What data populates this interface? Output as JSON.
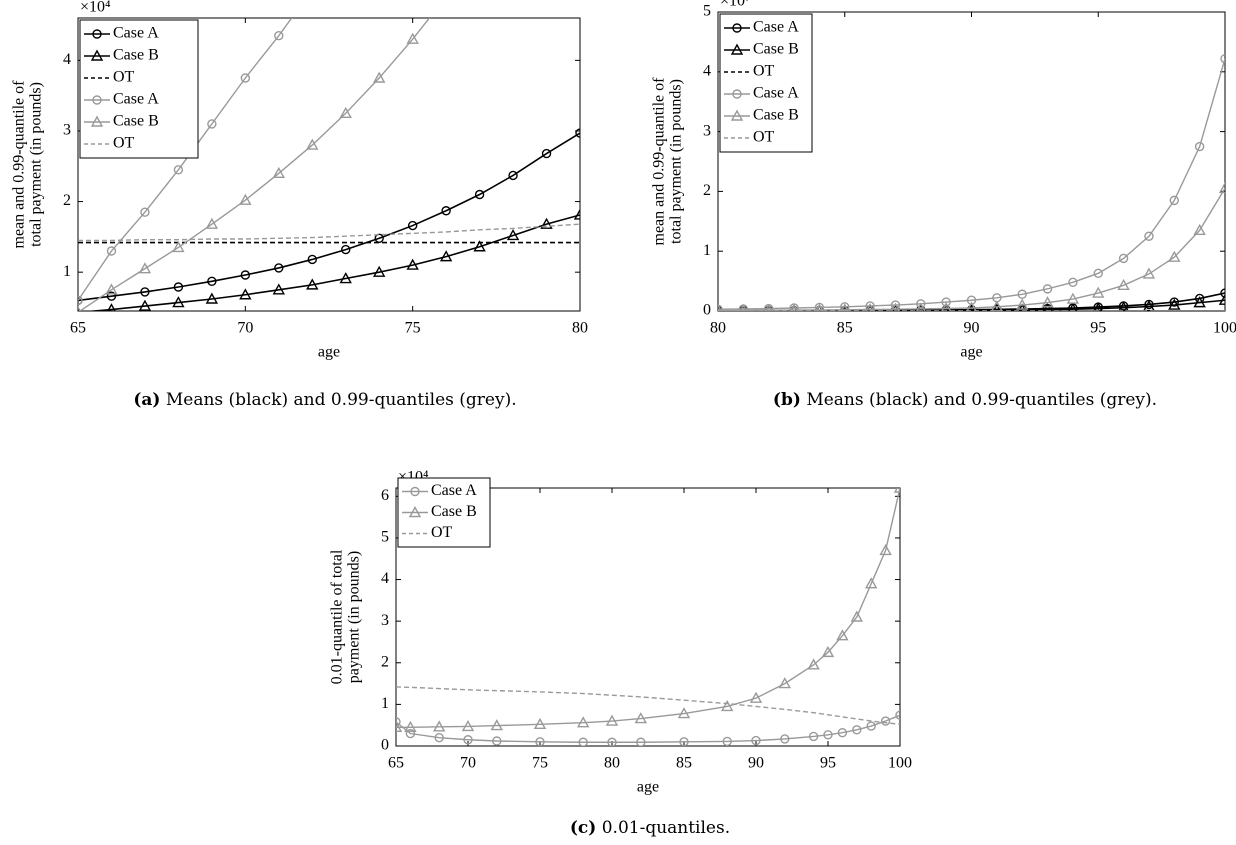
{
  "chart_data": [
    {
      "type": "line",
      "xlabel": "age",
      "ylabel": [
        "mean and 0.99-quantile of",
        "total payment (in pounds)"
      ],
      "y_multiplier": "×10⁴",
      "caption_label": "(a)",
      "caption": "Means (black) and 0.99-quantiles (grey).",
      "xlim": [
        65,
        80
      ],
      "xticks": [
        65,
        70,
        75,
        80
      ],
      "ylim": [
        0.45,
        4.6
      ],
      "yticks": [
        1,
        2,
        3,
        4
      ],
      "grid": false,
      "legend": "upper left",
      "x": [
        65,
        66,
        67,
        68,
        69,
        70,
        71,
        72,
        73,
        74,
        75,
        76,
        77,
        78,
        79,
        80
      ],
      "series": [
        {
          "name": "Case A",
          "color": "#000000",
          "marker": "circle",
          "dash": "solid",
          "values": [
            0.6,
            0.66,
            0.72,
            0.79,
            0.87,
            0.96,
            1.06,
            1.18,
            1.32,
            1.48,
            1.66,
            1.87,
            2.1,
            2.37,
            2.68,
            2.97
          ]
        },
        {
          "name": "Case B",
          "color": "#000000",
          "marker": "triangle",
          "dash": "solid",
          "values": [
            0.43,
            0.47,
            0.52,
            0.57,
            0.62,
            0.68,
            0.75,
            0.82,
            0.91,
            1.0,
            1.1,
            1.22,
            1.36,
            1.52,
            1.68,
            1.81
          ]
        },
        {
          "name": "OT",
          "color": "#000000",
          "marker": "none",
          "dash": "dashed",
          "values": [
            1.42,
            1.42,
            1.42,
            1.42,
            1.42,
            1.42,
            1.42,
            1.42,
            1.42,
            1.42,
            1.42,
            1.42,
            1.42,
            1.42,
            1.42,
            1.42
          ]
        },
        {
          "name": "Case A",
          "color": "#999999",
          "marker": "circle",
          "dash": "solid",
          "values": [
            0.6,
            1.3,
            1.85,
            2.45,
            3.1,
            3.75,
            4.35,
            5.0,
            null,
            null,
            null,
            null,
            null,
            null,
            null,
            null
          ]
        },
        {
          "name": "Case B",
          "color": "#999999",
          "marker": "triangle",
          "dash": "solid",
          "values": [
            0.43,
            0.75,
            1.05,
            1.35,
            1.68,
            2.02,
            2.4,
            2.8,
            3.25,
            3.75,
            4.3,
            4.9,
            null,
            null,
            null,
            null
          ]
        },
        {
          "name": "OT",
          "color": "#999999",
          "marker": "none",
          "dash": "dashed",
          "values": [
            1.45,
            1.45,
            1.46,
            1.46,
            1.47,
            1.47,
            1.48,
            1.49,
            1.51,
            1.53,
            1.55,
            1.57,
            1.6,
            1.62,
            1.65,
            1.68
          ]
        }
      ]
    },
    {
      "type": "line",
      "xlabel": "age",
      "ylabel": [
        "mean and 0.99-quantile of",
        "total payment (in pounds)"
      ],
      "y_multiplier": "×10⁷",
      "caption_label": "(b)",
      "caption": "Means (black) and 0.99-quantiles (grey).",
      "xlim": [
        80,
        100
      ],
      "xticks": [
        80,
        85,
        90,
        95,
        100
      ],
      "ylim": [
        0,
        5
      ],
      "yticks": [
        0,
        1,
        2,
        3,
        4,
        5
      ],
      "grid": false,
      "legend": "upper left",
      "x": [
        80,
        81,
        82,
        83,
        84,
        85,
        86,
        87,
        88,
        89,
        90,
        91,
        92,
        93,
        94,
        95,
        96,
        97,
        98,
        99,
        100
      ],
      "series": [
        {
          "name": "Case A",
          "color": "#000000",
          "marker": "circle",
          "dash": "solid",
          "values": [
            0.003,
            0.004,
            0.005,
            0.006,
            0.007,
            0.008,
            0.01,
            0.012,
            0.015,
            0.018,
            0.022,
            0.027,
            0.033,
            0.04,
            0.05,
            0.065,
            0.085,
            0.11,
            0.15,
            0.21,
            0.3
          ]
        },
        {
          "name": "Case B",
          "color": "#000000",
          "marker": "triangle",
          "dash": "solid",
          "values": [
            0.002,
            0.002,
            0.003,
            0.003,
            0.004,
            0.005,
            0.006,
            0.007,
            0.008,
            0.01,
            0.012,
            0.015,
            0.019,
            0.024,
            0.03,
            0.04,
            0.055,
            0.075,
            0.1,
            0.14,
            0.18
          ]
        },
        {
          "name": "OT",
          "color": "#000000",
          "marker": "none",
          "dash": "dashed",
          "values": [
            0.0014,
            0.0014,
            0.0014,
            0.0014,
            0.0014,
            0.0014,
            0.0014,
            0.0014,
            0.0014,
            0.0014,
            0.0014,
            0.0014,
            0.0014,
            0.0014,
            0.0014,
            0.0014,
            0.0014,
            0.0014,
            0.0014,
            0.0014,
            0.0014
          ]
        },
        {
          "name": "Case A",
          "color": "#999999",
          "marker": "circle",
          "dash": "solid",
          "values": [
            0.03,
            0.035,
            0.04,
            0.05,
            0.06,
            0.07,
            0.085,
            0.1,
            0.12,
            0.15,
            0.18,
            0.22,
            0.28,
            0.37,
            0.48,
            0.63,
            0.88,
            1.25,
            1.85,
            2.75,
            4.22
          ]
        },
        {
          "name": "Case B",
          "color": "#999999",
          "marker": "triangle",
          "dash": "solid",
          "values": [
            0.01,
            0.012,
            0.014,
            0.016,
            0.018,
            0.02,
            0.025,
            0.03,
            0.035,
            0.042,
            0.05,
            0.07,
            0.1,
            0.14,
            0.2,
            0.3,
            0.43,
            0.62,
            0.9,
            1.35,
            2.05
          ]
        },
        {
          "name": "OT",
          "color": "#999999",
          "marker": "none",
          "dash": "dashed",
          "values": [
            0.0015,
            0.0015,
            0.0015,
            0.0015,
            0.0015,
            0.0015,
            0.0015,
            0.0015,
            0.0015,
            0.0015,
            0.0015,
            0.0015,
            0.0015,
            0.0015,
            0.0015,
            0.0015,
            0.0015,
            0.0015,
            0.0015,
            0.0015,
            0.0015
          ]
        }
      ]
    },
    {
      "type": "line",
      "xlabel": "age",
      "ylabel": [
        "0.01-quantile of total",
        "payment (in pounds)"
      ],
      "y_multiplier": "×10⁴",
      "caption_label": "(c)",
      "caption": "0.01-quantiles.",
      "xlim": [
        65,
        100
      ],
      "xticks": [
        65,
        70,
        75,
        80,
        85,
        90,
        95,
        100
      ],
      "ylim": [
        0,
        6.2
      ],
      "yticks": [
        0,
        1,
        2,
        3,
        4,
        5,
        6
      ],
      "grid": false,
      "legend": "upper left",
      "x": [
        65,
        66,
        68,
        70,
        72,
        75,
        78,
        80,
        82,
        85,
        88,
        90,
        92,
        94,
        95,
        96,
        97,
        98,
        99,
        100
      ],
      "series": [
        {
          "name": "Case A",
          "color": "#999999",
          "marker": "circle",
          "dash": "solid",
          "values": [
            0.58,
            0.3,
            0.2,
            0.15,
            0.12,
            0.1,
            0.09,
            0.09,
            0.09,
            0.1,
            0.11,
            0.13,
            0.17,
            0.23,
            0.27,
            0.32,
            0.39,
            0.48,
            0.6,
            0.74
          ]
        },
        {
          "name": "Case B",
          "color": "#999999",
          "marker": "triangle",
          "dash": "solid",
          "values": [
            0.45,
            0.45,
            0.46,
            0.47,
            0.49,
            0.52,
            0.56,
            0.6,
            0.66,
            0.78,
            0.95,
            1.15,
            1.5,
            1.95,
            2.25,
            2.65,
            3.1,
            3.9,
            4.7,
            6.2
          ]
        },
        {
          "name": "OT",
          "color": "#999999",
          "marker": "none",
          "dash": "dashed",
          "values": [
            1.42,
            1.41,
            1.38,
            1.35,
            1.33,
            1.3,
            1.26,
            1.22,
            1.18,
            1.1,
            1.02,
            0.95,
            0.88,
            0.8,
            0.75,
            0.7,
            0.65,
            0.6,
            0.56,
            0.52
          ]
        }
      ]
    }
  ]
}
